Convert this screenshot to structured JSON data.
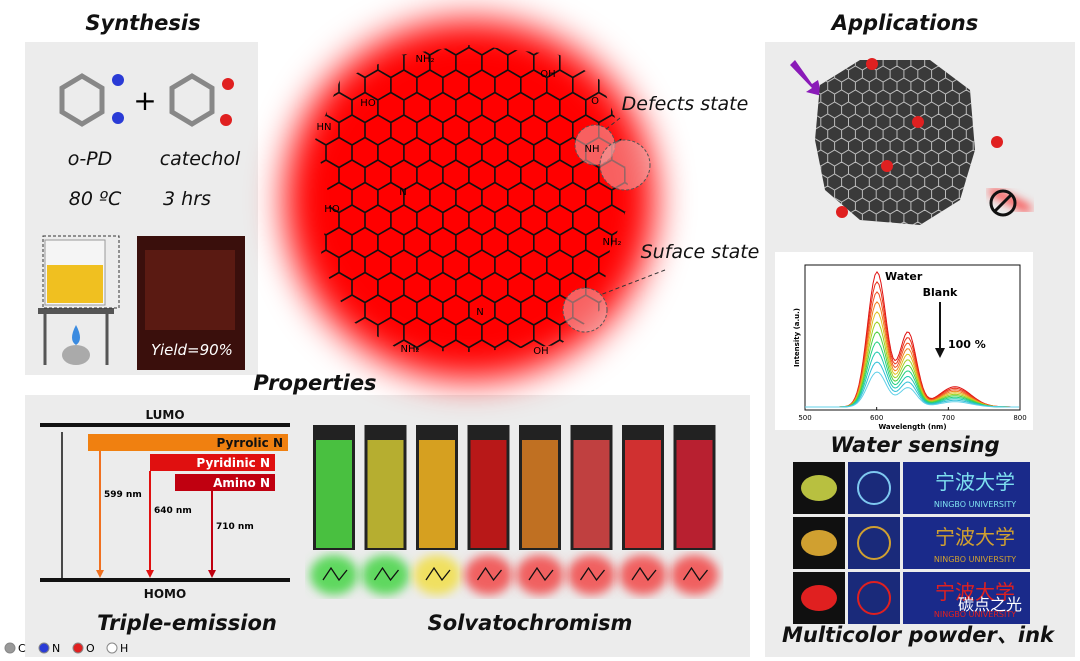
{
  "synthesis": {
    "title": "Synthesis",
    "reactant1": "o-PD",
    "reactant2": "catechol",
    "temperature": "80 ºC",
    "time": "3 hrs",
    "yield": "Yield=90%"
  },
  "structure": {
    "defects": "Defects state",
    "surface": "Suface state",
    "groups": [
      "NH₂",
      "OH",
      "HO",
      "HN",
      "O",
      "NH",
      "HO",
      "N",
      "NH₂",
      "NH₂",
      "OH",
      "N"
    ]
  },
  "applications": {
    "title": "Applications",
    "sensing_title": "Water sensing",
    "powder_title": "Multicolor powder、ink",
    "university_cn": "宁波大学",
    "university": "NINGBO UNIVERSITY",
    "watermark": "碳点之光"
  },
  "spectrum": {
    "xlabel": "Wavelength (nm)",
    "ylabel": "Intensity (a.u.)",
    "xlim": [
      500,
      800
    ],
    "xticks": [
      500,
      600,
      700,
      800
    ],
    "water": "Water",
    "blank": "Blank",
    "percent": "100 %"
  },
  "properties": {
    "title": "Properties",
    "lumo": "LUMO",
    "homo": "HOMO",
    "levels": [
      "Pyrrolic N",
      "Pyridinic N",
      "Amino N"
    ],
    "emissions": [
      "599 nm",
      "640 nm",
      "710 nm"
    ],
    "triple": "Triple-emission",
    "solvato": "Solvatochromism"
  },
  "legend": [
    "C",
    "N",
    "O",
    "H"
  ]
}
